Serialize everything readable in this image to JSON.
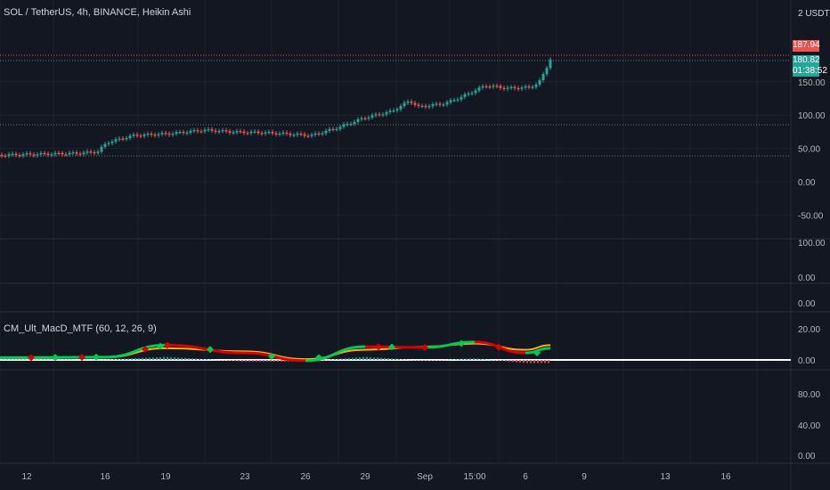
{
  "header": {
    "symbol_line": "SOL / TetherUS, 4h, BINANCE, Heikin Ashi",
    "currency": "2 USDT",
    "indicator_title": "CM_Ult_MacD_MTF (60, 12, 26, 9)"
  },
  "price_tags": {
    "high": "187.94",
    "last": "180.82",
    "countdown": "01:38:52"
  },
  "colors": {
    "background": "#131722",
    "up": "#26a69a",
    "down": "#ef5350",
    "grid": "#1e222d",
    "macd_rising": "#00c853",
    "macd_falling": "#d50000",
    "signal": "#ffb300"
  },
  "axes": {
    "main_ticks": [
      "150.00",
      "100.00",
      "50.00",
      "0.00",
      "-50.00"
    ],
    "pane2_ticks": [
      "100.00",
      "0.00"
    ],
    "pane3_ticks": [
      "0.00"
    ],
    "macd_ticks": [
      "20.00",
      "0.00"
    ],
    "pane5_ticks": [
      "80.00",
      "40.00",
      "0.00"
    ],
    "x_ticks": [
      "12",
      "16",
      "19",
      "23",
      "26",
      "29",
      "Sep",
      "15:00",
      "6",
      "9",
      "13",
      "16"
    ]
  },
  "chart_data": [
    {
      "type": "candlestick",
      "series": "SOL/USDT Heikin Ashi 4h",
      "x": [
        "12",
        "13",
        "14",
        "15",
        "16",
        "17",
        "18",
        "19",
        "20",
        "21",
        "22",
        "23",
        "24",
        "25",
        "26",
        "27",
        "28",
        "29",
        "30",
        "31",
        "Sep",
        "2",
        "3",
        "4",
        "5",
        "6",
        "7"
      ],
      "close_approx": [
        41,
        42,
        42,
        43,
        44,
        56,
        72,
        74,
        74,
        76,
        74,
        74,
        73,
        72,
        70,
        76,
        83,
        92,
        99,
        112,
        108,
        127,
        139,
        134,
        130,
        136,
        181
      ],
      "ylim": [
        -65,
        190
      ],
      "levels": [
        187.94,
        180.82,
        86,
        38
      ]
    },
    {
      "type": "line",
      "series_names": [
        "MACD",
        "Signal"
      ],
      "x": [
        "12",
        "16",
        "19",
        "23",
        "26",
        "29",
        "Sep",
        "15:00",
        "6"
      ],
      "macd_approx": [
        1.5,
        1.8,
        9.5,
        4.5,
        -0.5,
        8.5,
        8.0,
        11.5,
        4.5
      ],
      "signal_approx": [
        1.2,
        1.6,
        7.5,
        5.5,
        0.5,
        6.5,
        8.5,
        10.5,
        6.5
      ],
      "ylim": [
        -5,
        24
      ]
    }
  ]
}
